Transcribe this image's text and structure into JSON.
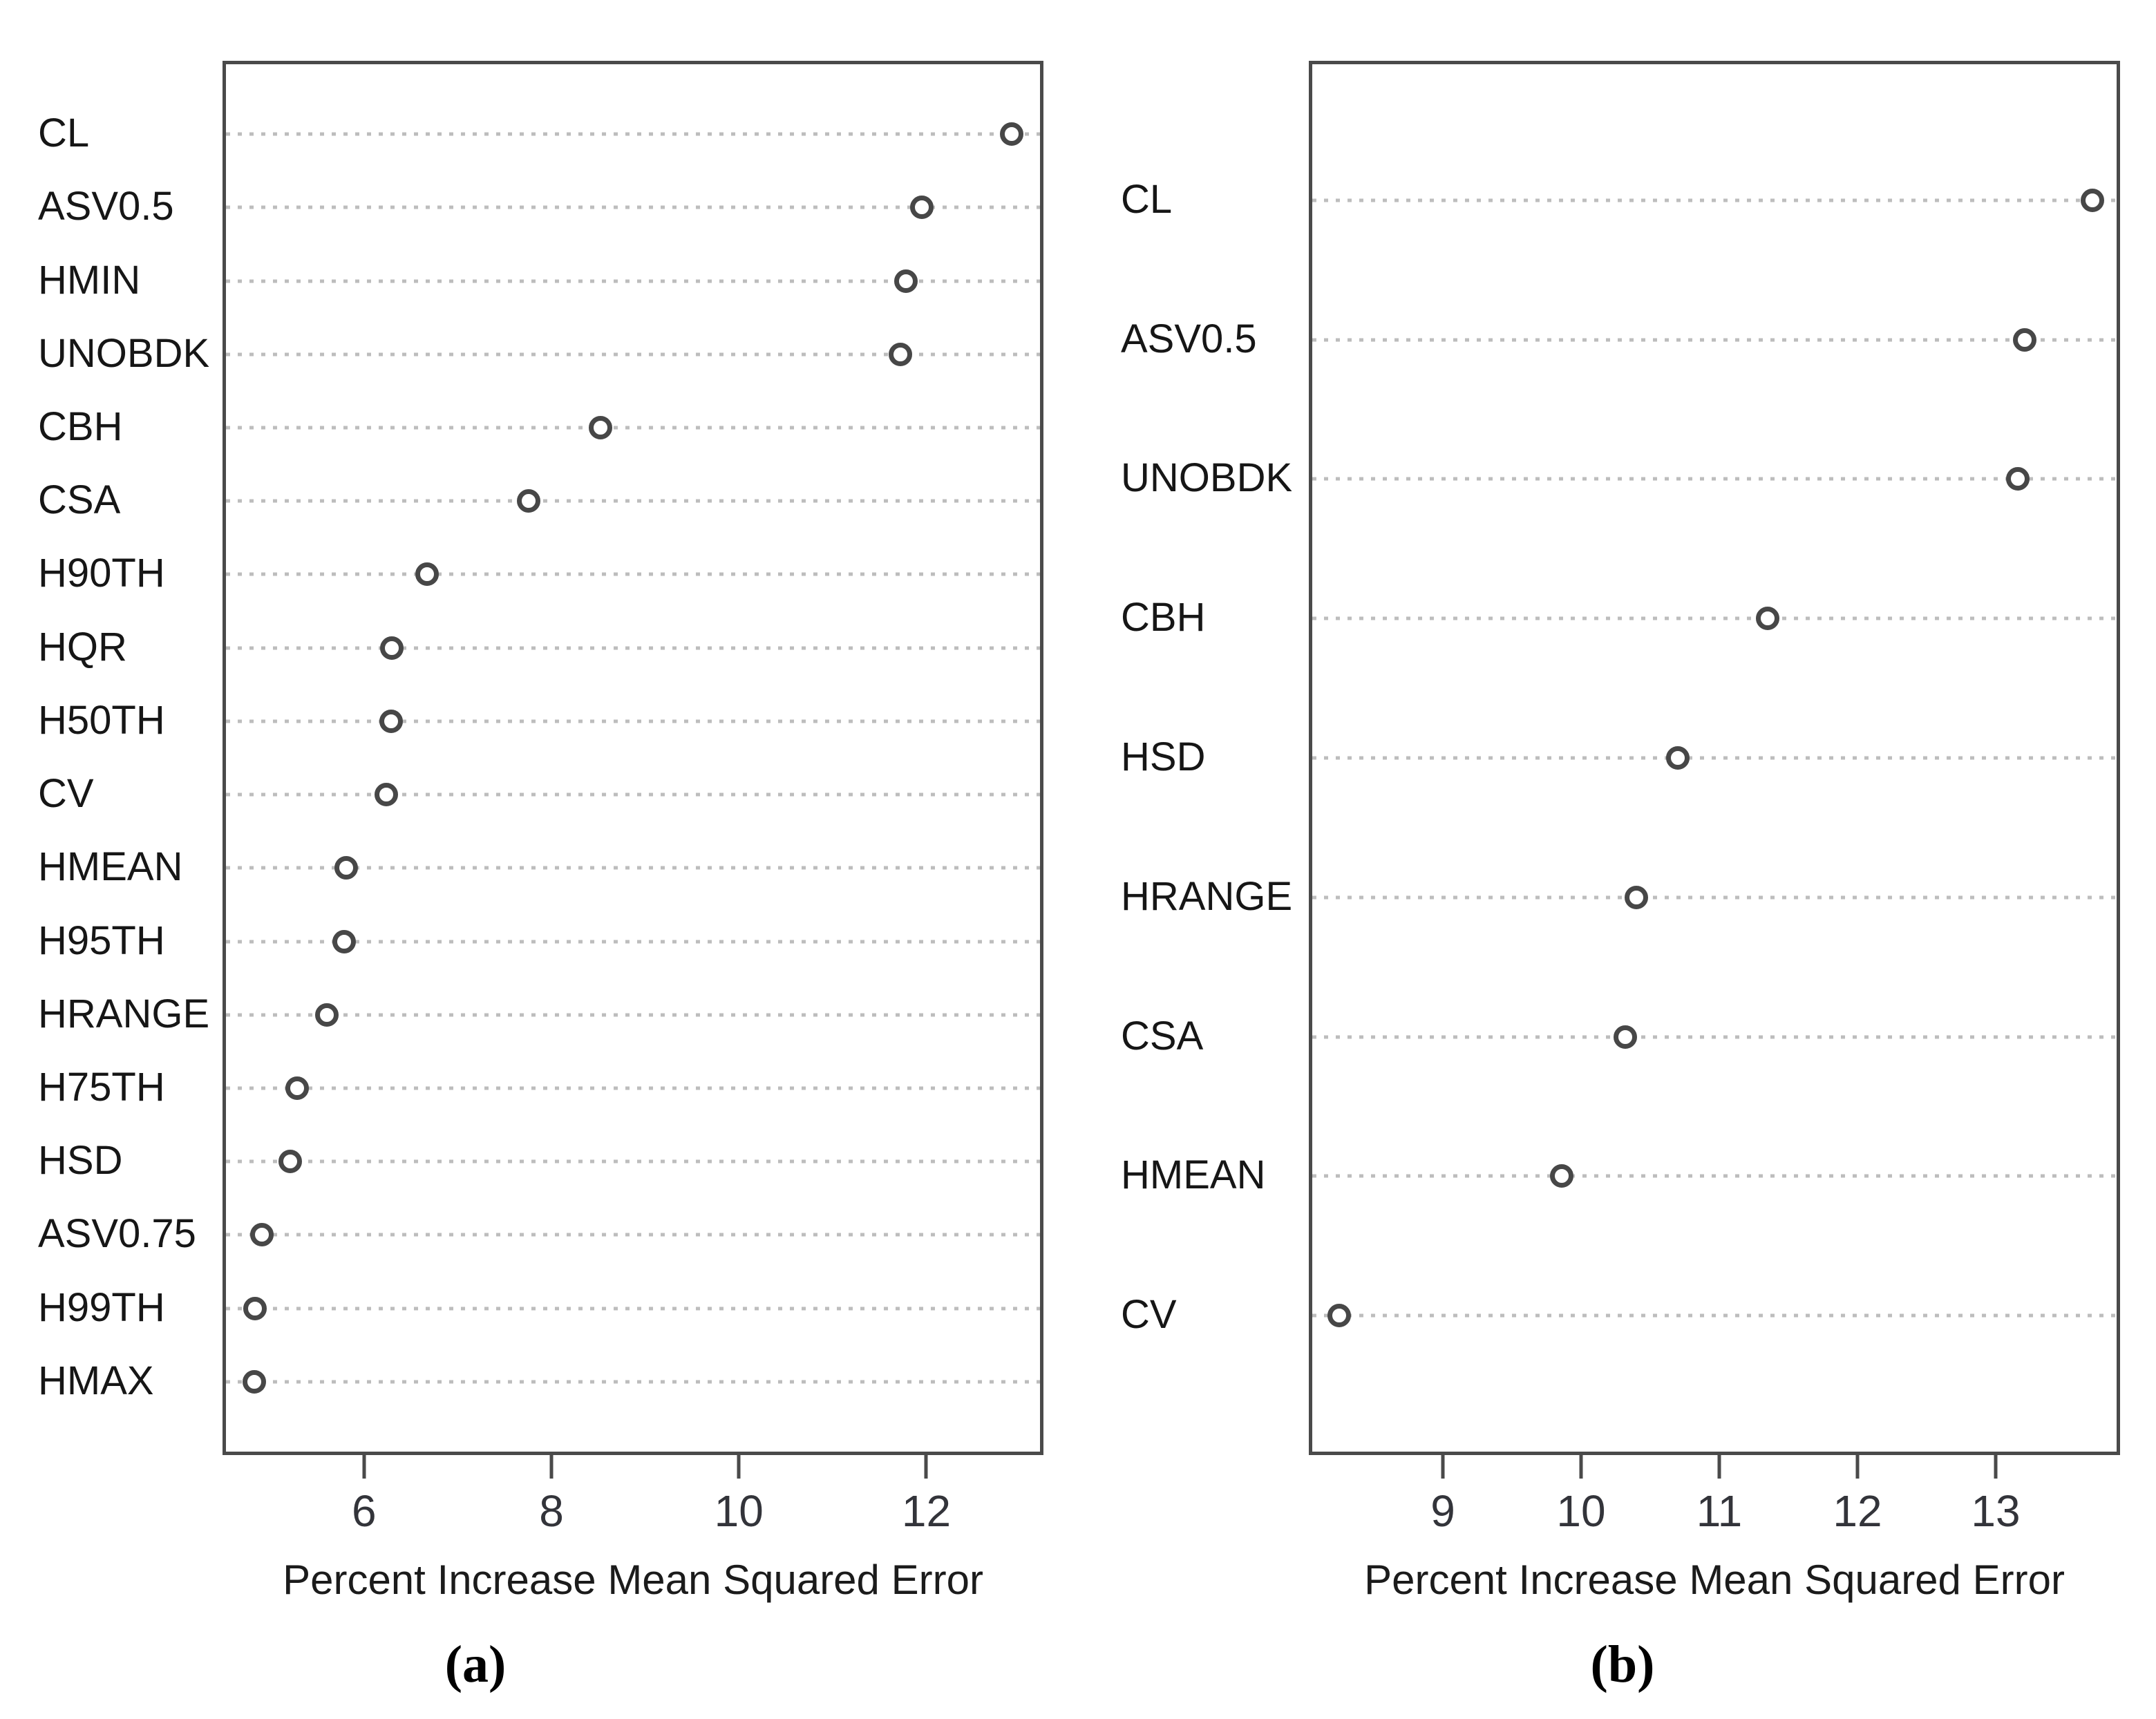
{
  "figure": {
    "type": "dot-plot-pair",
    "background": "#ffffff",
    "colors": {
      "box_border": "#4a4a4a",
      "dot_stroke": "#474747",
      "dot_fill": "#ffffff",
      "leader_dots": "#bdbdbd",
      "tick": "#4a4a4a",
      "label_text": "#161616",
      "tick_text": "#33343a"
    }
  },
  "chart_data": [
    {
      "type": "scatter",
      "variant": "dotchart",
      "panel": "a",
      "caption": "(a)",
      "xlabel": "Percent Increase Mean Squared Error",
      "xlim": [
        4.49,
        13.25
      ],
      "x_ticks": [
        6,
        8,
        10,
        12
      ],
      "grid": "dotted-horizontal",
      "legend": "none",
      "categories": [
        "CL",
        "ASV0.5",
        "HMIN",
        "UNOBDK",
        "CBH",
        "CSA",
        "H90TH",
        "HQR",
        "H50TH",
        "CV",
        "HMEAN",
        "H95TH",
        "HRANGE",
        "H75TH",
        "HSD",
        "ASV0.75",
        "H99TH",
        "HMAX"
      ],
      "values": [
        12.91,
        11.95,
        11.78,
        11.72,
        8.52,
        7.76,
        6.67,
        6.3,
        6.29,
        6.24,
        5.81,
        5.79,
        5.6,
        5.29,
        5.21,
        4.91,
        4.84,
        4.83
      ]
    },
    {
      "type": "scatter",
      "variant": "dotchart",
      "panel": "b",
      "caption": "(b)",
      "xlabel": "Percent Increase Mean Squared Error",
      "xlim": [
        8.03,
        13.9
      ],
      "x_ticks": [
        9,
        10,
        11,
        12,
        13
      ],
      "grid": "dotted-horizontal",
      "legend": "none",
      "categories": [
        "CL",
        "ASV0.5",
        "UNOBDK",
        "CBH",
        "HSD",
        "HRANGE",
        "CSA",
        "HMEAN",
        "CV"
      ],
      "values": [
        13.7,
        13.21,
        13.16,
        11.35,
        10.7,
        10.4,
        10.32,
        9.86,
        8.25
      ]
    }
  ]
}
